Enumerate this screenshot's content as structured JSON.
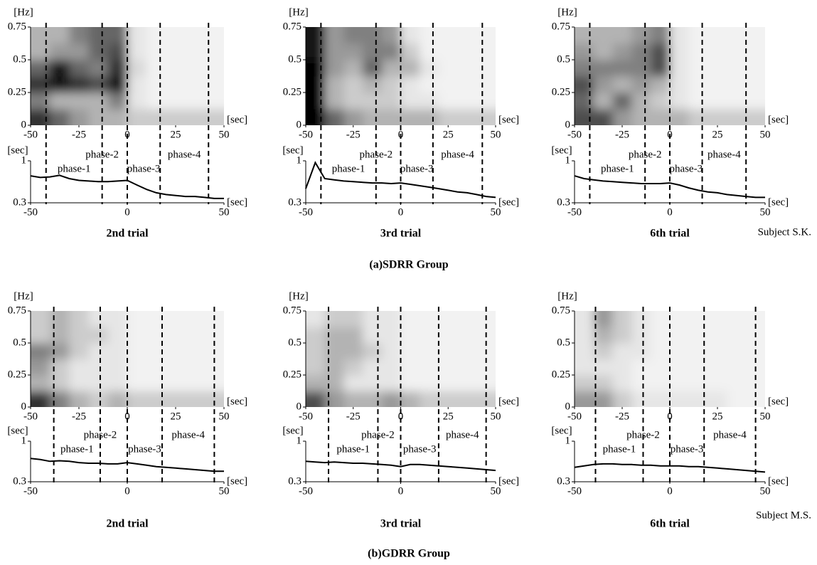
{
  "figure_labels": [
    {
      "caption": "(a)SDRR Group",
      "subject": "Subject S.K."
    },
    {
      "caption": "(b)GDRR Group",
      "subject": "Subject M.S."
    }
  ],
  "chart_data": [
    {
      "type": "heatmap",
      "xlabel": "[sec]",
      "ylabel": "[Hz]",
      "xlim": [
        -50,
        50
      ],
      "ylim": [
        0,
        0.75
      ],
      "xticks": [
        -50,
        -25,
        0,
        25,
        50
      ],
      "yticks": [
        0,
        0.25,
        0.5,
        0.75
      ],
      "x": [
        -45,
        -35,
        -25,
        -15,
        -5,
        5,
        15,
        25,
        35,
        45
      ],
      "y": [
        0.0625,
        0.1875,
        0.3125,
        0.4375,
        0.5625,
        0.6875
      ],
      "values": [
        [
          0.8,
          0.6,
          0.4,
          0.3,
          0.3,
          0.2,
          0.2,
          0.2,
          0.2,
          0.2
        ],
        [
          0.5,
          0.3,
          0.3,
          0.3,
          0.5,
          0.1,
          0.05,
          0.05,
          0.05,
          0.05
        ],
        [
          0.8,
          0.9,
          0.8,
          0.7,
          0.9,
          0.1,
          0.05,
          0.05,
          0.05,
          0.05
        ],
        [
          0.6,
          0.9,
          0.6,
          0.5,
          0.8,
          0.15,
          0.05,
          0.05,
          0.05,
          0.05
        ],
        [
          0.3,
          0.4,
          0.4,
          0.6,
          0.7,
          0.1,
          0.05,
          0.05,
          0.05,
          0.05
        ],
        [
          0.3,
          0.3,
          0.5,
          0.6,
          0.6,
          0.1,
          0.05,
          0.05,
          0.05,
          0.05
        ]
      ]
    },
    {
      "type": "line",
      "title": "2nd trial",
      "xlabel": "[sec]",
      "ylabel": "[sec]",
      "log_y": true,
      "color": "#000000",
      "xlim": [
        -50,
        50
      ],
      "ylim": [
        0.3,
        1
      ],
      "xticks": [
        -50,
        0,
        50
      ],
      "yticks": [
        0.3,
        1
      ],
      "x": [
        -50,
        -45,
        -40,
        -35,
        -30,
        -25,
        -20,
        -15,
        -10,
        -5,
        0,
        5,
        10,
        15,
        20,
        25,
        30,
        35,
        40,
        45,
        50
      ],
      "values": [
        0.65,
        0.62,
        0.63,
        0.66,
        0.6,
        0.57,
        0.56,
        0.55,
        0.55,
        0.56,
        0.57,
        0.5,
        0.44,
        0.4,
        0.38,
        0.37,
        0.36,
        0.36,
        0.35,
        0.34,
        0.34
      ],
      "phase_lines": [
        -42,
        -13,
        0,
        17,
        42
      ],
      "phase_labels": [
        "phase-1",
        "phase-2",
        "phase-3",
        "phase-4"
      ]
    },
    {
      "type": "heatmap",
      "xlabel": "[sec]",
      "ylabel": "[Hz]",
      "xlim": [
        -50,
        50
      ],
      "ylim": [
        0,
        0.75
      ],
      "xticks": [
        -50,
        -25,
        0,
        25,
        50
      ],
      "yticks": [
        0,
        0.25,
        0.5,
        0.75
      ],
      "x": [
        -45,
        -35,
        -25,
        -15,
        -5,
        5,
        15,
        25,
        35,
        45
      ],
      "y": [
        0.0625,
        0.1875,
        0.3125,
        0.4375,
        0.5625,
        0.6875
      ],
      "values": [
        [
          1,
          0.6,
          0.4,
          0.3,
          0.3,
          0.3,
          0.3,
          0.2,
          0.2,
          0.2
        ],
        [
          1,
          0.3,
          0.2,
          0.2,
          0.2,
          0.1,
          0.1,
          0.05,
          0.05,
          0.05
        ],
        [
          1,
          0.3,
          0.2,
          0.3,
          0.2,
          0.1,
          0.05,
          0.05,
          0.05,
          0.05
        ],
        [
          1,
          0.4,
          0.3,
          0.6,
          0.3,
          0.3,
          0.1,
          0.05,
          0.05,
          0.05
        ],
        [
          0.9,
          0.4,
          0.4,
          0.5,
          0.5,
          0.2,
          0.05,
          0.05,
          0.05,
          0.05
        ],
        [
          0.9,
          0.4,
          0.5,
          0.5,
          0.4,
          0.1,
          0.05,
          0.05,
          0.05,
          0.05
        ]
      ]
    },
    {
      "type": "line",
      "title": "3rd trial",
      "xlabel": "[sec]",
      "ylabel": "[sec]",
      "log_y": true,
      "color": "#000000",
      "xlim": [
        -50,
        50
      ],
      "ylim": [
        0.3,
        1
      ],
      "xticks": [
        -50,
        0,
        50
      ],
      "yticks": [
        0.3,
        1
      ],
      "x": [
        -50,
        -45,
        -40,
        -35,
        -30,
        -25,
        -20,
        -15,
        -10,
        -5,
        0,
        5,
        10,
        15,
        20,
        25,
        30,
        35,
        40,
        45,
        50
      ],
      "values": [
        0.45,
        0.95,
        0.6,
        0.58,
        0.56,
        0.55,
        0.54,
        0.53,
        0.53,
        0.52,
        0.53,
        0.51,
        0.49,
        0.47,
        0.45,
        0.43,
        0.41,
        0.4,
        0.38,
        0.36,
        0.35
      ],
      "phase_lines": [
        -42,
        -13,
        0,
        17,
        43
      ],
      "phase_labels": [
        "phase-1",
        "phase-2",
        "phase-3",
        "phase-4"
      ]
    },
    {
      "type": "heatmap",
      "xlabel": "[sec]",
      "ylabel": "[Hz]",
      "xlim": [
        -50,
        50
      ],
      "ylim": [
        0,
        0.75
      ],
      "xticks": [
        -50,
        -25,
        0,
        25,
        50
      ],
      "yticks": [
        0,
        0.25,
        0.5,
        0.75
      ],
      "x": [
        -45,
        -35,
        -25,
        -15,
        -5,
        5,
        15,
        25,
        35,
        45
      ],
      "y": [
        0.0625,
        0.1875,
        0.3125,
        0.4375,
        0.5625,
        0.6875
      ],
      "values": [
        [
          0.7,
          0.7,
          0.4,
          0.3,
          0.3,
          0.3,
          0.2,
          0.2,
          0.2,
          0.2
        ],
        [
          0.6,
          0.3,
          0.6,
          0.3,
          0.2,
          0.1,
          0.05,
          0.05,
          0.05,
          0.05
        ],
        [
          0.7,
          0.4,
          0.3,
          0.4,
          0.3,
          0.1,
          0.05,
          0.05,
          0.05,
          0.05
        ],
        [
          0.5,
          0.5,
          0.5,
          0.5,
          0.7,
          0.1,
          0.05,
          0.05,
          0.05,
          0.05
        ],
        [
          0.4,
          0.3,
          0.4,
          0.5,
          0.7,
          0.1,
          0.05,
          0.05,
          0.05,
          0.05
        ],
        [
          0.3,
          0.3,
          0.3,
          0.4,
          0.5,
          0.1,
          0.05,
          0.05,
          0.05,
          0.05
        ]
      ]
    },
    {
      "type": "line",
      "title": "6th trial",
      "xlabel": "[sec]",
      "ylabel": "[sec]",
      "log_y": true,
      "color": "#000000",
      "xlim": [
        -50,
        50
      ],
      "ylim": [
        0.3,
        1
      ],
      "xticks": [
        -50,
        0,
        50
      ],
      "yticks": [
        0.3,
        1
      ],
      "x": [
        -50,
        -45,
        -40,
        -35,
        -30,
        -25,
        -20,
        -15,
        -10,
        -5,
        0,
        5,
        10,
        15,
        20,
        25,
        30,
        35,
        40,
        45,
        50
      ],
      "values": [
        0.65,
        0.6,
        0.58,
        0.56,
        0.55,
        0.54,
        0.53,
        0.52,
        0.52,
        0.52,
        0.53,
        0.5,
        0.46,
        0.43,
        0.41,
        0.4,
        0.38,
        0.37,
        0.36,
        0.35,
        0.35
      ],
      "phase_lines": [
        -42,
        -13,
        0,
        17,
        40
      ],
      "phase_labels": [
        "phase-1",
        "phase-2",
        "phase-3",
        "phase-4"
      ]
    },
    {
      "type": "heatmap",
      "xlabel": "[sec]",
      "ylabel": "[Hz]",
      "xlim": [
        -50,
        50
      ],
      "ylim": [
        0,
        0.75
      ],
      "xticks": [
        -50,
        -25,
        0,
        25,
        50
      ],
      "yticks": [
        0,
        0.25,
        0.5,
        0.75
      ],
      "x": [
        -45,
        -35,
        -25,
        -15,
        -5,
        5,
        15,
        25,
        35,
        45
      ],
      "y": [
        0.0625,
        0.1875,
        0.3125,
        0.4375,
        0.5625,
        0.6875
      ],
      "values": [
        [
          0.8,
          0.5,
          0.3,
          0.2,
          0.3,
          0.2,
          0.2,
          0.2,
          0.2,
          0.2
        ],
        [
          0.3,
          0.2,
          0.1,
          0.1,
          0.1,
          0.05,
          0.05,
          0.05,
          0.05,
          0.05
        ],
        [
          0.4,
          0.2,
          0.1,
          0.1,
          0.1,
          0.05,
          0.05,
          0.05,
          0.05,
          0.05
        ],
        [
          0.5,
          0.4,
          0.2,
          0.1,
          0.1,
          0.05,
          0.05,
          0.05,
          0.05,
          0.05
        ],
        [
          0.2,
          0.3,
          0.2,
          0.2,
          0.1,
          0.05,
          0.05,
          0.05,
          0.05,
          0.05
        ],
        [
          0.2,
          0.3,
          0.2,
          0.1,
          0.1,
          0.05,
          0.05,
          0.05,
          0.05,
          0.05
        ]
      ]
    },
    {
      "type": "line",
      "title": "2nd trial",
      "xlabel": "[sec]",
      "ylabel": "[sec]",
      "log_y": true,
      "color": "#000000",
      "xlim": [
        -50,
        50
      ],
      "ylim": [
        0.3,
        1
      ],
      "xticks": [
        -50,
        0,
        50
      ],
      "yticks": [
        0.3,
        1
      ],
      "x": [
        -50,
        -45,
        -40,
        -35,
        -30,
        -25,
        -20,
        -15,
        -10,
        -5,
        0,
        5,
        10,
        15,
        20,
        25,
        30,
        35,
        40,
        45,
        50
      ],
      "values": [
        0.6,
        0.58,
        0.55,
        0.56,
        0.55,
        0.53,
        0.52,
        0.52,
        0.51,
        0.51,
        0.53,
        0.51,
        0.49,
        0.47,
        0.46,
        0.45,
        0.44,
        0.43,
        0.42,
        0.41,
        0.41
      ],
      "phase_lines": [
        -38,
        -14,
        0,
        18,
        45
      ],
      "phase_labels": [
        "phase-1",
        "phase-2",
        "phase-3",
        "phase-4"
      ]
    },
    {
      "type": "heatmap",
      "xlabel": "[sec]",
      "ylabel": "[Hz]",
      "xlim": [
        -50,
        50
      ],
      "ylim": [
        0,
        0.75
      ],
      "xticks": [
        -50,
        -25,
        0,
        25,
        50
      ],
      "yticks": [
        0,
        0.25,
        0.5,
        0.75
      ],
      "x": [
        -45,
        -35,
        -25,
        -15,
        -5,
        5,
        15,
        25,
        35,
        45
      ],
      "y": [
        0.0625,
        0.1875,
        0.3125,
        0.4375,
        0.5625,
        0.6875
      ],
      "values": [
        [
          0.7,
          0.4,
          0.3,
          0.3,
          0.4,
          0.3,
          0.2,
          0.2,
          0.2,
          0.2
        ],
        [
          0.3,
          0.3,
          0.1,
          0.1,
          0.1,
          0.05,
          0.05,
          0.05,
          0.05,
          0.05
        ],
        [
          0.2,
          0.3,
          0.2,
          0.1,
          0.1,
          0.05,
          0.05,
          0.05,
          0.05,
          0.05
        ],
        [
          0.2,
          0.3,
          0.3,
          0.2,
          0.1,
          0.05,
          0.05,
          0.05,
          0.05,
          0.05
        ],
        [
          0.2,
          0.3,
          0.3,
          0.1,
          0.1,
          0.05,
          0.05,
          0.05,
          0.05,
          0.05
        ],
        [
          0.1,
          0.2,
          0.2,
          0.1,
          0.1,
          0.05,
          0.05,
          0.05,
          0.05,
          0.05
        ]
      ]
    },
    {
      "type": "line",
      "title": "3rd trial",
      "xlabel": "[sec]",
      "ylabel": "[sec]",
      "log_y": true,
      "color": "#000000",
      "xlim": [
        -50,
        50
      ],
      "ylim": [
        0.3,
        1
      ],
      "xticks": [
        -50,
        0,
        50
      ],
      "yticks": [
        0.3,
        1
      ],
      "x": [
        -50,
        -45,
        -40,
        -35,
        -30,
        -25,
        -20,
        -15,
        -10,
        -5,
        0,
        5,
        10,
        15,
        20,
        25,
        30,
        35,
        40,
        45,
        50
      ],
      "values": [
        0.55,
        0.54,
        0.53,
        0.54,
        0.53,
        0.52,
        0.52,
        0.51,
        0.5,
        0.49,
        0.47,
        0.5,
        0.5,
        0.49,
        0.48,
        0.47,
        0.46,
        0.45,
        0.44,
        0.43,
        0.42
      ],
      "phase_lines": [
        -38,
        -12,
        0,
        20,
        45
      ],
      "phase_labels": [
        "phase-1",
        "phase-2",
        "phase-3",
        "phase-4"
      ]
    },
    {
      "type": "heatmap",
      "xlabel": "[sec]",
      "ylabel": "[Hz]",
      "xlim": [
        -50,
        50
      ],
      "ylim": [
        0,
        0.75
      ],
      "xticks": [
        -50,
        -25,
        0,
        25,
        50
      ],
      "yticks": [
        0,
        0.25,
        0.5,
        0.75
      ],
      "x": [
        -45,
        -35,
        -25,
        -15,
        -5,
        5,
        15,
        25,
        35,
        45
      ],
      "y": [
        0.0625,
        0.1875,
        0.3125,
        0.4375,
        0.5625,
        0.6875
      ],
      "values": [
        [
          0.4,
          0.4,
          0.2,
          0.1,
          0.1,
          0.1,
          0.1,
          0.1,
          0.05,
          0.05
        ],
        [
          0.2,
          0.2,
          0.1,
          0.05,
          0.05,
          0.05,
          0.05,
          0.05,
          0.05,
          0.05
        ],
        [
          0.1,
          0.1,
          0.1,
          0.05,
          0.05,
          0.05,
          0.05,
          0.05,
          0.05,
          0.05
        ],
        [
          0.1,
          0.2,
          0.1,
          0.1,
          0.05,
          0.05,
          0.05,
          0.05,
          0.05,
          0.05
        ],
        [
          0.1,
          0.3,
          0.2,
          0.1,
          0.05,
          0.05,
          0.05,
          0.05,
          0.05,
          0.05
        ],
        [
          0.1,
          0.4,
          0.2,
          0.1,
          0.05,
          0.05,
          0.05,
          0.05,
          0.05,
          0.05
        ]
      ]
    },
    {
      "type": "line",
      "title": "6th trial",
      "xlabel": "[sec]",
      "ylabel": "[sec]",
      "log_y": true,
      "color": "#000000",
      "xlim": [
        -50,
        50
      ],
      "ylim": [
        0.3,
        1
      ],
      "xticks": [
        -50,
        0,
        50
      ],
      "yticks": [
        0.3,
        1
      ],
      "x": [
        -50,
        -45,
        -40,
        -35,
        -30,
        -25,
        -20,
        -15,
        -10,
        -5,
        0,
        5,
        10,
        15,
        20,
        25,
        30,
        35,
        40,
        45,
        50
      ],
      "values": [
        0.46,
        0.48,
        0.5,
        0.51,
        0.51,
        0.5,
        0.5,
        0.49,
        0.49,
        0.48,
        0.48,
        0.48,
        0.47,
        0.47,
        0.46,
        0.45,
        0.44,
        0.43,
        0.42,
        0.41,
        0.4
      ],
      "phase_lines": [
        -39,
        -14,
        0,
        18,
        45
      ],
      "phase_labels": [
        "phase-1",
        "phase-2",
        "phase-3",
        "phase-4"
      ]
    }
  ]
}
